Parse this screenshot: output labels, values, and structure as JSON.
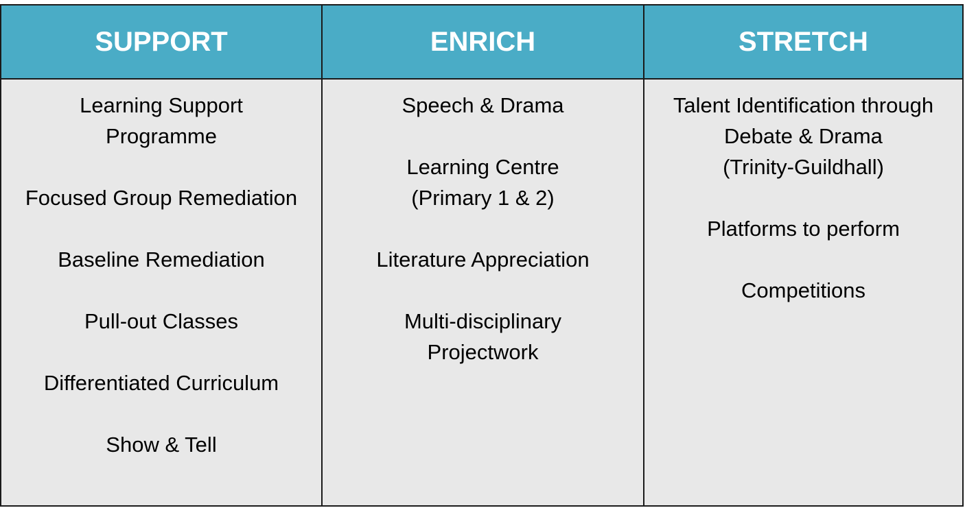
{
  "columns": [
    {
      "header": "SUPPORT",
      "items": [
        [
          "Learning Support",
          "Programme"
        ],
        [
          "Focused Group Remediation"
        ],
        [
          "Baseline Remediation"
        ],
        [
          "Pull-out Classes"
        ],
        [
          "Differentiated Curriculum"
        ],
        [
          "Show & Tell"
        ]
      ]
    },
    {
      "header": "ENRICH",
      "items": [
        [
          "Speech & Drama"
        ],
        [
          "Learning Centre",
          "(Primary 1 & 2)"
        ],
        [
          "Literature Appreciation"
        ],
        [
          "Multi-disciplinary",
          "Projectwork"
        ]
      ]
    },
    {
      "header": "STRETCH",
      "items": [
        [
          "Talent Identification through",
          "Debate & Drama",
          "(Trinity-Guildhall)"
        ],
        [
          "Platforms to perform"
        ],
        [
          "Competitions"
        ]
      ]
    }
  ],
  "colors": {
    "header_bg": "#4aacc6",
    "header_text": "#ffffff",
    "cell_bg": "#e8e8e8",
    "border": "#1a1a1a"
  }
}
